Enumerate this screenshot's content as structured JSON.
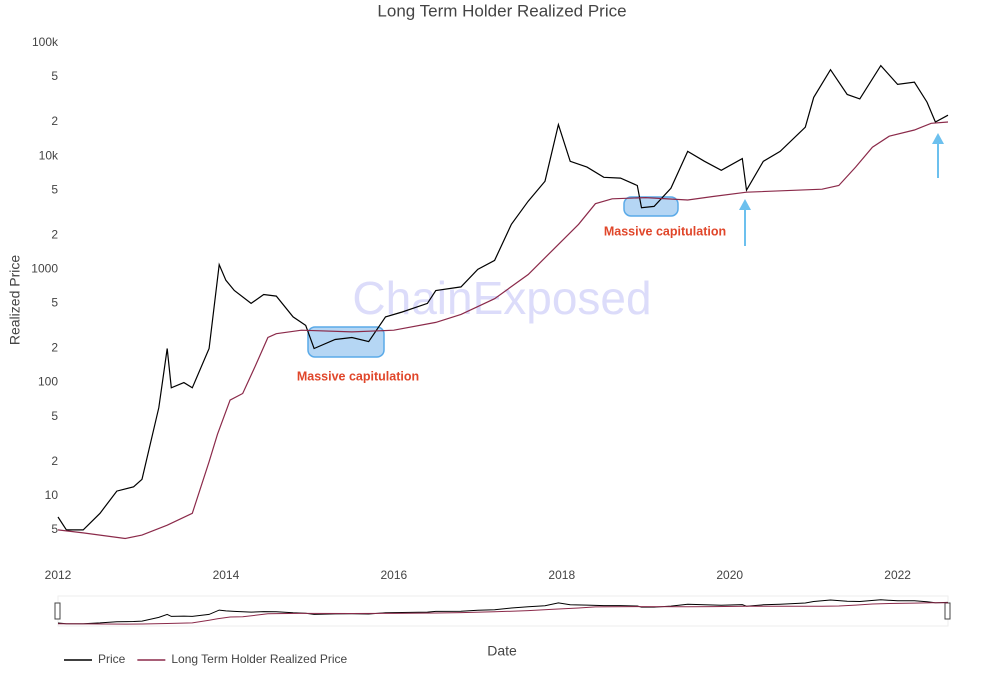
{
  "chart_data": {
    "type": "line",
    "title": "Long Term Holder Realized Price",
    "xlabel": "Date",
    "ylabel": "Realized Price",
    "log_y": true,
    "grid": false,
    "watermark": "ChainExposed",
    "annotations": [
      "Massive capitulation",
      "Massive capitulation"
    ],
    "xlim": [
      2012,
      2022.6
    ],
    "xticks": [
      2012,
      2014,
      2016,
      2018,
      2020,
      2022
    ],
    "ylim": [
      3,
      130000
    ],
    "yticks": [
      {
        "value": 100000,
        "label": "100k"
      },
      {
        "value": 50000,
        "label": "5"
      },
      {
        "value": 20000,
        "label": "2"
      },
      {
        "value": 10000,
        "label": "10k"
      },
      {
        "value": 5000,
        "label": "5"
      },
      {
        "value": 2000,
        "label": "2"
      },
      1000,
      {
        "value": 500,
        "label": "5"
      },
      {
        "value": 200,
        "label": "2"
      },
      100,
      {
        "value": 50,
        "label": "5"
      },
      {
        "value": 20,
        "label": "2"
      },
      10,
      5
    ],
    "legend": "bottom-left",
    "series": [
      {
        "name": "Price",
        "color": "#000000",
        "x": [
          2012.0,
          2012.1,
          2012.3,
          2012.5,
          2012.7,
          2012.9,
          2013.0,
          2013.2,
          2013.3,
          2013.35,
          2013.5,
          2013.6,
          2013.8,
          2013.92,
          2014.0,
          2014.1,
          2014.3,
          2014.45,
          2014.6,
          2014.8,
          2014.95,
          2015.05,
          2015.3,
          2015.5,
          2015.7,
          2015.9,
          2016.1,
          2016.4,
          2016.5,
          2016.8,
          2017.0,
          2017.2,
          2017.4,
          2017.6,
          2017.8,
          2017.96,
          2018.1,
          2018.3,
          2018.5,
          2018.7,
          2018.9,
          2018.95,
          2019.1,
          2019.3,
          2019.5,
          2019.7,
          2019.9,
          2020.15,
          2020.2,
          2020.4,
          2020.6,
          2020.9,
          2021.0,
          2021.2,
          2021.4,
          2021.55,
          2021.8,
          2022.0,
          2022.2,
          2022.35,
          2022.45,
          2022.6
        ],
        "values": [
          6.5,
          5,
          5,
          7,
          11,
          12,
          14,
          60,
          200,
          90,
          100,
          90,
          200,
          1100,
          800,
          650,
          500,
          600,
          580,
          380,
          320,
          200,
          240,
          250,
          230,
          380,
          420,
          500,
          650,
          700,
          1000,
          1200,
          2500,
          4000,
          6000,
          19000,
          9000,
          8000,
          6500,
          6400,
          5500,
          3500,
          3600,
          5200,
          11000,
          9000,
          7500,
          9500,
          5000,
          9000,
          11000,
          18000,
          33000,
          58000,
          35000,
          32000,
          63000,
          43000,
          45000,
          30000,
          20000,
          23000
        ]
      },
      {
        "name": "Long Term Holder Realized Price",
        "color": "#8b2a4a",
        "x": [
          2012.0,
          2012.3,
          2012.8,
          2013.0,
          2013.3,
          2013.6,
          2013.8,
          2013.9,
          2014.05,
          2014.2,
          2014.35,
          2014.5,
          2014.6,
          2014.9,
          2015.5,
          2016.0,
          2016.5,
          2016.8,
          2017.2,
          2017.6,
          2017.9,
          2018.2,
          2018.4,
          2018.6,
          2019.0,
          2019.5,
          2019.8,
          2020.2,
          2020.8,
          2021.1,
          2021.3,
          2021.5,
          2021.7,
          2021.9,
          2022.2,
          2022.4,
          2022.6
        ],
        "values": [
          5,
          4.7,
          4.2,
          4.5,
          5.5,
          7,
          20,
          35,
          70,
          80,
          140,
          250,
          270,
          290,
          280,
          290,
          340,
          400,
          550,
          900,
          1500,
          2500,
          3800,
          4200,
          4300,
          4100,
          4400,
          4800,
          5000,
          5100,
          5500,
          8000,
          12000,
          15000,
          17000,
          19500,
          20000
        ]
      }
    ]
  }
}
